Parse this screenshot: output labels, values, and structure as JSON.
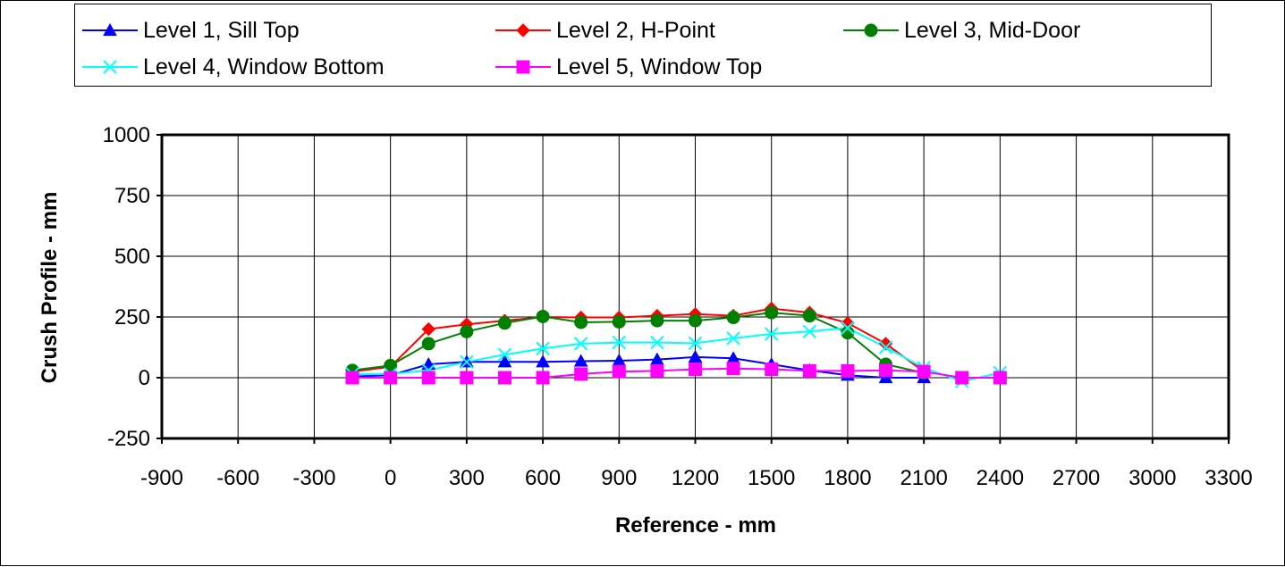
{
  "chart_data": {
    "type": "line",
    "title": "",
    "xlabel": "Reference - mm",
    "ylabel": "Crush Profile - mm",
    "xlim": [
      -900,
      3300
    ],
    "ylim": [
      -250,
      1000
    ],
    "x_ticks": [
      -900,
      -600,
      -300,
      0,
      300,
      600,
      900,
      1200,
      1500,
      1800,
      2100,
      2400,
      2700,
      3000,
      3300
    ],
    "y_ticks": [
      -250,
      0,
      250,
      500,
      750,
      1000
    ],
    "x_tick_labels": [
      "-900",
      "-600",
      "-300",
      "0",
      "300",
      "600",
      "900",
      "1200",
      "1500",
      "1800",
      "2100",
      "2400",
      "2700",
      "3000",
      "3300"
    ],
    "y_tick_labels": [
      "-250",
      "0",
      "250",
      "500",
      "750",
      "1000"
    ],
    "grid": true,
    "legend_position": "top",
    "series": [
      {
        "name": "Level 1, Sill Top",
        "color": "#0000ff",
        "marker": "triangle",
        "x": [
          -150,
          0,
          150,
          300,
          450,
          600,
          750,
          900,
          1050,
          1200,
          1350,
          1500,
          1650,
          1800,
          1950,
          2100
        ],
        "y": [
          5,
          10,
          55,
          65,
          65,
          65,
          68,
          70,
          75,
          85,
          80,
          55,
          30,
          10,
          0,
          0
        ]
      },
      {
        "name": "Level 2, H-Point",
        "color": "#ff0000",
        "marker": "diamond",
        "x": [
          -150,
          0,
          150,
          300,
          450,
          600,
          750,
          900,
          1050,
          1200,
          1350,
          1500,
          1650,
          1800,
          1950,
          2100
        ],
        "y": [
          25,
          45,
          200,
          220,
          235,
          250,
          248,
          248,
          255,
          262,
          255,
          285,
          268,
          225,
          140,
          25
        ]
      },
      {
        "name": "Level 3, Mid-Door",
        "color": "#008000",
        "marker": "circle",
        "x": [
          -150,
          0,
          150,
          300,
          450,
          600,
          750,
          900,
          1050,
          1200,
          1350,
          1500,
          1650,
          1800,
          1950,
          2100
        ],
        "y": [
          30,
          50,
          140,
          190,
          225,
          252,
          228,
          230,
          235,
          235,
          248,
          268,
          255,
          185,
          55,
          20
        ]
      },
      {
        "name": "Level 4, Window Bottom",
        "color": "#00ffff",
        "marker": "x",
        "x": [
          -150,
          0,
          150,
          300,
          450,
          600,
          750,
          900,
          1050,
          1200,
          1350,
          1500,
          1650,
          1800,
          1950,
          2100,
          2250,
          2400
        ],
        "y": [
          15,
          15,
          30,
          65,
          95,
          120,
          140,
          145,
          145,
          142,
          162,
          180,
          190,
          205,
          125,
          40,
          -15,
          20
        ]
      },
      {
        "name": "Level 5, Window Top",
        "color": "#ff00ff",
        "marker": "square",
        "x": [
          -150,
          0,
          150,
          300,
          450,
          600,
          750,
          900,
          1050,
          1200,
          1350,
          1500,
          1650,
          1800,
          1950,
          2100,
          2250,
          2400
        ],
        "y": [
          0,
          0,
          0,
          0,
          0,
          0,
          15,
          25,
          28,
          35,
          38,
          35,
          28,
          28,
          30,
          25,
          0,
          0
        ]
      }
    ]
  }
}
